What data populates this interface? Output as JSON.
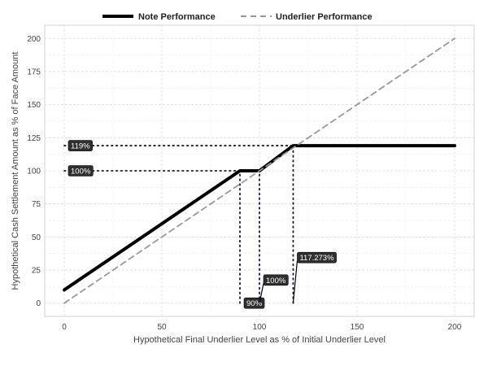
{
  "chart_data": {
    "type": "line",
    "title": "",
    "xlabel": "Hypothetical Final Underlier Level as % of Initial Underlier Level",
    "ylabel": "Hypothetical Cash Settlement Amount as % of Face Amount",
    "xlim": [
      -10,
      210
    ],
    "ylim": [
      -10,
      210
    ],
    "x_ticks": [
      0,
      50,
      100,
      150,
      200
    ],
    "y_ticks": [
      0,
      25,
      50,
      75,
      100,
      125,
      150,
      175,
      200
    ],
    "grid": true,
    "legend_position": "top",
    "series": [
      {
        "name": "Note Performance",
        "style": "solid",
        "color": "#000000",
        "points": [
          [
            0,
            10
          ],
          [
            90,
            100
          ],
          [
            100,
            100
          ],
          [
            117.273,
            119
          ],
          [
            200,
            119
          ]
        ]
      },
      {
        "name": "Underlier Performance",
        "style": "dashed",
        "color": "#999999",
        "points": [
          [
            0,
            0
          ],
          [
            200,
            200
          ]
        ]
      }
    ],
    "reference_lines": {
      "horizontal": [
        {
          "y": 119,
          "x_from": 0,
          "x_to": 117.273
        },
        {
          "y": 100,
          "x_from": 0,
          "x_to": 90
        }
      ],
      "vertical": [
        {
          "x": 90,
          "y_from": 0,
          "y_to": 100
        },
        {
          "x": 100,
          "y_from": 0,
          "y_to": 100
        },
        {
          "x": 117.273,
          "y_from": 0,
          "y_to": 119
        }
      ]
    },
    "annotations": [
      {
        "text": "119%",
        "x": 0,
        "y": 119,
        "side": "right"
      },
      {
        "text": "100%",
        "x": 0,
        "y": 100,
        "side": "right"
      },
      {
        "text": "90%",
        "x": 90,
        "y": 0,
        "side": "right"
      },
      {
        "text": "100%",
        "x": 100,
        "y": 0,
        "side": "leader",
        "label_y": 15
      },
      {
        "text": "117.273%",
        "x": 117.273,
        "y": 0,
        "side": "leader",
        "label_y": 32
      }
    ]
  }
}
